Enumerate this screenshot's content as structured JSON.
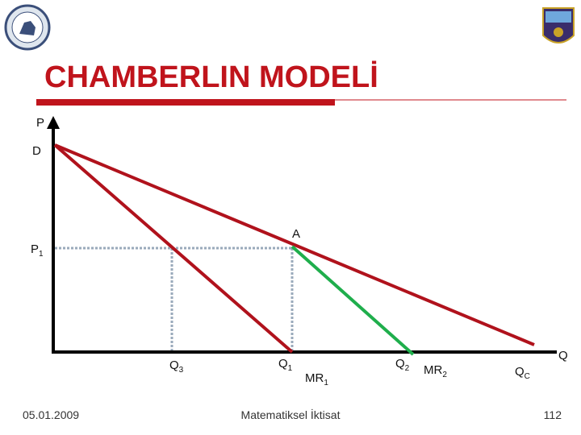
{
  "header": {
    "title": "CHAMBERLIN MODELİ"
  },
  "diagram": {
    "labels": [
      {
        "main": "P"
      },
      {
        "main": "D"
      },
      {
        "main": "P",
        "sub": "1"
      },
      {
        "main": "A"
      },
      {
        "main": "Q",
        "sub": "3"
      },
      {
        "main": "Q",
        "sub": "1"
      },
      {
        "main": "MR",
        "sub": "1"
      },
      {
        "main": "Q",
        "sub": "2"
      },
      {
        "main": "MR",
        "sub": "2"
      },
      {
        "main": "Q",
        "sub": "C"
      },
      {
        "main": "Q"
      }
    ]
  },
  "footer": {
    "date": "05.01.2009",
    "course": "Matematiksel İktisat",
    "page": "112"
  }
}
